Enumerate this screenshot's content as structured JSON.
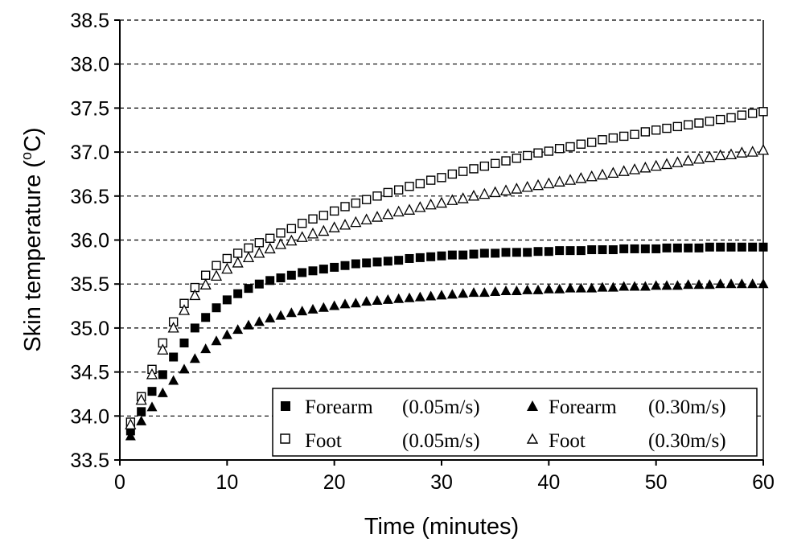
{
  "chart_data": {
    "type": "scatter",
    "title": "",
    "xlabel": "Time (minutes)",
    "ylabel_main": "Skin temperature (",
    "ylabel_sup": "o",
    "ylabel_unit": "C)",
    "xlim": [
      0,
      60
    ],
    "ylim": [
      33.5,
      38.5
    ],
    "x_ticks": [
      "0",
      "10",
      "20",
      "30",
      "40",
      "50",
      "60"
    ],
    "y_ticks": [
      "33.5",
      "34.0",
      "34.5",
      "35.0",
      "35.5",
      "36.0",
      "36.5",
      "37.0",
      "37.5",
      "38.0",
      "38.5"
    ],
    "grid": "horizontal dashed",
    "legend_placement": "bottom-right",
    "series": [
      {
        "name": "Forearm",
        "name_suffix": "(0.05m/s)",
        "marker": "filled-square",
        "x": [
          1,
          2,
          3,
          4,
          5,
          6,
          7,
          8,
          9,
          10,
          11,
          12,
          13,
          14,
          15,
          16,
          17,
          18,
          19,
          20,
          21,
          22,
          23,
          24,
          25,
          26,
          27,
          28,
          29,
          30,
          31,
          32,
          33,
          34,
          35,
          36,
          37,
          38,
          39,
          40,
          41,
          42,
          43,
          44,
          45,
          46,
          47,
          48,
          49,
          50,
          51,
          52,
          53,
          54,
          55,
          56,
          57,
          58,
          59,
          60
        ],
        "y": [
          33.83,
          34.05,
          34.28,
          34.47,
          34.67,
          34.83,
          35.0,
          35.12,
          35.23,
          35.32,
          35.39,
          35.45,
          35.5,
          35.54,
          35.57,
          35.6,
          35.63,
          35.65,
          35.67,
          35.69,
          35.71,
          35.73,
          35.74,
          35.75,
          35.76,
          35.77,
          35.79,
          35.8,
          35.81,
          35.82,
          35.83,
          35.83,
          35.84,
          35.85,
          35.85,
          35.86,
          35.86,
          35.86,
          35.87,
          35.87,
          35.88,
          35.88,
          35.88,
          35.89,
          35.89,
          35.89,
          35.9,
          35.9,
          35.9,
          35.9,
          35.91,
          35.91,
          35.91,
          35.91,
          35.92,
          35.92,
          35.92,
          35.92,
          35.92,
          35.92
        ]
      },
      {
        "name": "Forearm",
        "name_suffix": "(0.30m/s)",
        "marker": "filled-triangle",
        "x": [
          1,
          2,
          3,
          4,
          5,
          6,
          7,
          8,
          9,
          10,
          11,
          12,
          13,
          14,
          15,
          16,
          17,
          18,
          19,
          20,
          21,
          22,
          23,
          24,
          25,
          26,
          27,
          28,
          29,
          30,
          31,
          32,
          33,
          34,
          35,
          36,
          37,
          38,
          39,
          40,
          41,
          42,
          43,
          44,
          45,
          46,
          47,
          48,
          49,
          50,
          51,
          52,
          53,
          54,
          55,
          56,
          57,
          58,
          59,
          60
        ],
        "y": [
          33.77,
          33.94,
          34.1,
          34.26,
          34.4,
          34.53,
          34.65,
          34.76,
          34.85,
          34.92,
          34.98,
          35.03,
          35.07,
          35.11,
          35.14,
          35.17,
          35.19,
          35.21,
          35.23,
          35.25,
          35.27,
          35.28,
          35.3,
          35.31,
          35.32,
          35.33,
          35.34,
          35.35,
          35.36,
          35.37,
          35.38,
          35.39,
          35.4,
          35.4,
          35.41,
          35.42,
          35.42,
          35.43,
          35.43,
          35.44,
          35.44,
          35.45,
          35.45,
          35.45,
          35.46,
          35.46,
          35.47,
          35.47,
          35.47,
          35.48,
          35.48,
          35.48,
          35.49,
          35.49,
          35.49,
          35.5,
          35.5,
          35.5,
          35.5,
          35.5
        ]
      },
      {
        "name": "Foot",
        "name_suffix": "(0.05m/s)",
        "marker": "open-square",
        "x": [
          1,
          2,
          3,
          4,
          5,
          6,
          7,
          8,
          9,
          10,
          11,
          12,
          13,
          14,
          15,
          16,
          17,
          18,
          19,
          20,
          21,
          22,
          23,
          24,
          25,
          26,
          27,
          28,
          29,
          30,
          31,
          32,
          33,
          34,
          35,
          36,
          37,
          38,
          39,
          40,
          41,
          42,
          43,
          44,
          45,
          46,
          47,
          48,
          49,
          50,
          51,
          52,
          53,
          54,
          55,
          56,
          57,
          58,
          59,
          60
        ],
        "y": [
          33.93,
          34.22,
          34.53,
          34.83,
          35.07,
          35.28,
          35.46,
          35.6,
          35.71,
          35.79,
          35.85,
          35.91,
          35.97,
          36.02,
          36.08,
          36.13,
          36.19,
          36.24,
          36.28,
          36.33,
          36.38,
          36.42,
          36.46,
          36.5,
          36.54,
          36.57,
          36.61,
          36.64,
          36.68,
          36.71,
          36.75,
          36.78,
          36.81,
          36.84,
          36.87,
          36.9,
          36.93,
          36.96,
          36.99,
          37.01,
          37.04,
          37.06,
          37.09,
          37.11,
          37.14,
          37.16,
          37.18,
          37.2,
          37.23,
          37.25,
          37.27,
          37.29,
          37.31,
          37.33,
          37.35,
          37.37,
          37.39,
          37.42,
          37.44,
          37.46
        ]
      },
      {
        "name": "Foot",
        "name_suffix": "(0.30m/s)",
        "marker": "open-triangle",
        "x": [
          1,
          2,
          3,
          4,
          5,
          6,
          7,
          8,
          9,
          10,
          11,
          12,
          13,
          14,
          15,
          16,
          17,
          18,
          19,
          20,
          21,
          22,
          23,
          24,
          25,
          26,
          27,
          28,
          29,
          30,
          31,
          32,
          33,
          34,
          35,
          36,
          37,
          38,
          39,
          40,
          41,
          42,
          43,
          44,
          45,
          46,
          47,
          48,
          49,
          50,
          51,
          52,
          53,
          54,
          55,
          56,
          57,
          58,
          59,
          60
        ],
        "y": [
          33.9,
          34.18,
          34.47,
          34.75,
          35.0,
          35.2,
          35.37,
          35.49,
          35.59,
          35.67,
          35.74,
          35.8,
          35.85,
          35.9,
          35.95,
          35.99,
          36.03,
          36.07,
          36.1,
          36.14,
          36.17,
          36.2,
          36.23,
          36.26,
          36.29,
          36.32,
          36.34,
          36.37,
          36.4,
          36.42,
          36.45,
          36.47,
          36.5,
          36.52,
          36.54,
          36.56,
          36.58,
          36.6,
          36.62,
          36.64,
          36.66,
          36.68,
          36.7,
          36.72,
          36.74,
          36.76,
          36.78,
          36.8,
          36.82,
          36.84,
          36.86,
          36.88,
          36.9,
          36.92,
          36.94,
          36.96,
          36.97,
          36.99,
          37.0,
          37.02
        ]
      }
    ]
  }
}
